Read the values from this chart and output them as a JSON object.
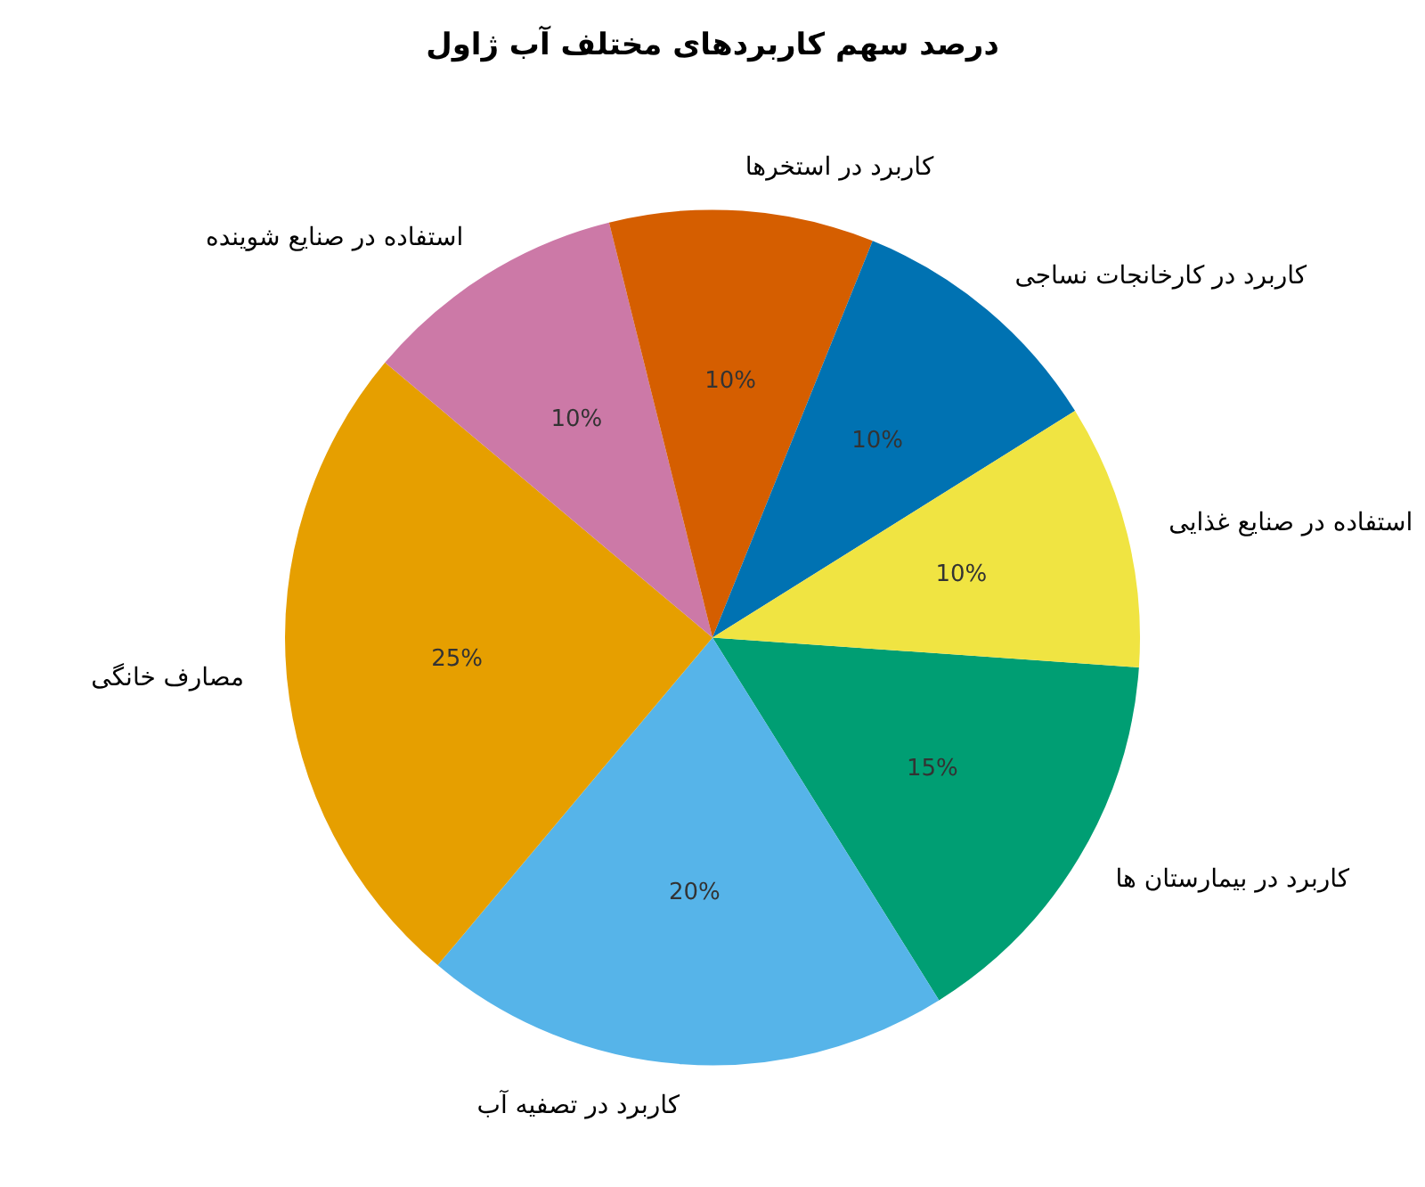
{
  "chart_data": {
    "type": "pie",
    "title": "درصد سهم کاربردهای مختلف آب ژاول",
    "categories": [
      "کاربرد در بیمارستان ها",
      "کاربرد در تصفیه آب",
      "مصارف خانگی",
      "استفاده در صنایع شوینده",
      "کاربرد در استخرها",
      "کاربرد در کارخانجات نساجی",
      "استفاده در صنایع غذایی"
    ],
    "values": [
      15,
      20,
      25,
      10,
      10,
      10,
      10
    ],
    "value_labels": [
      "15%",
      "20%",
      "25%",
      "10%",
      "10%",
      "10%",
      "10%"
    ],
    "colors": [
      "#009e73",
      "#56b4e9",
      "#e69f00",
      "#cc79a7",
      "#d55e00",
      "#0072b2",
      "#f0e442"
    ],
    "legend": false
  }
}
